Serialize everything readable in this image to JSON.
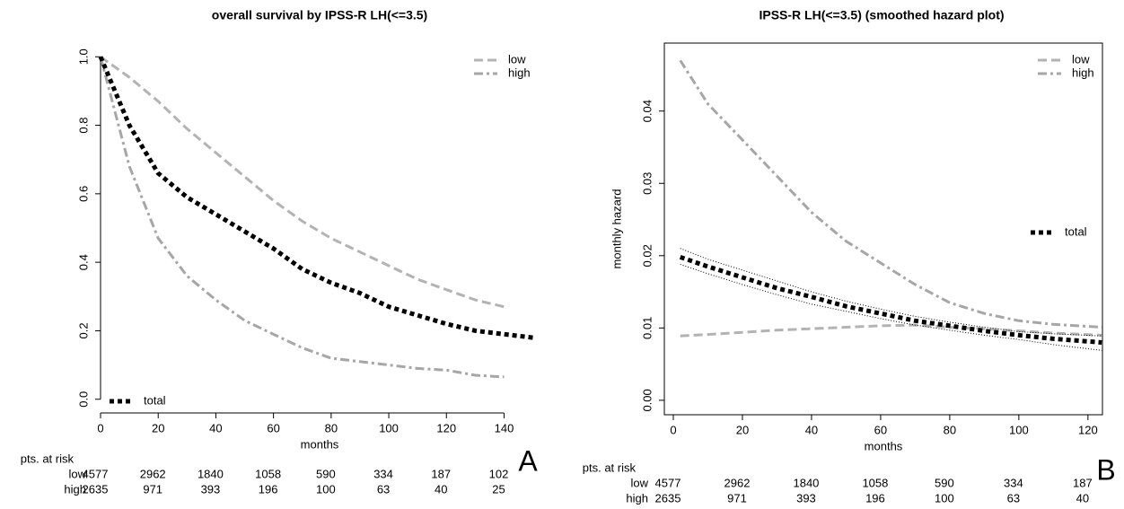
{
  "chart_data": [
    {
      "type": "line",
      "title": "overall survival by IPSS-R LH(<=3.5)",
      "xlabel": "months",
      "frame": "axes",
      "x": [
        0,
        10,
        20,
        30,
        40,
        50,
        60,
        70,
        80,
        90,
        100,
        110,
        120,
        130,
        140,
        150
      ],
      "series": [
        {
          "name": "low",
          "color": "#b3b3b3",
          "dash": "dashed",
          "line_width": 3,
          "legend_corner": "top-right",
          "values": [
            1.0,
            0.94,
            0.87,
            0.79,
            0.72,
            0.65,
            0.58,
            0.52,
            0.47,
            0.43,
            0.39,
            0.35,
            0.32,
            0.29,
            0.27,
            null
          ]
        },
        {
          "name": "high",
          "color": "#a6a6a6",
          "dash": "dotdash",
          "line_width": 3,
          "legend_corner": "top-right",
          "values": [
            1.0,
            0.68,
            0.47,
            0.36,
            0.29,
            0.23,
            0.19,
            0.15,
            0.12,
            0.11,
            0.1,
            0.09,
            0.085,
            0.07,
            0.065,
            null
          ]
        },
        {
          "name": "total",
          "color": "#000000",
          "dash": "dotted",
          "line_width": 5,
          "legend_corner": "bottom-left",
          "values": [
            1.0,
            0.8,
            0.66,
            0.59,
            0.54,
            0.49,
            0.44,
            0.38,
            0.34,
            0.31,
            0.27,
            0.245,
            0.22,
            0.2,
            0.19,
            0.18
          ]
        }
      ],
      "xlim": [
        0,
        152
      ],
      "ylim": [
        -0.04,
        1.04
      ],
      "xticks": [
        0,
        20,
        40,
        60,
        80,
        100,
        120,
        140
      ],
      "yticks": [
        {
          "value": 0,
          "label": "0.0"
        },
        {
          "value": 0.2,
          "label": "0.2"
        },
        {
          "value": 0.4,
          "label": "0.4"
        },
        {
          "value": 0.6,
          "label": "0.6"
        },
        {
          "value": 0.8,
          "label": "0.8"
        },
        {
          "value": 1,
          "label": "1.0"
        }
      ],
      "annotation": "A",
      "risk_table": {
        "title": "pts. at risk",
        "rows": [
          {
            "name": "low",
            "values": [
              4577,
              2962,
              1840,
              1058,
              590,
              334,
              187,
              102
            ]
          },
          {
            "name": "high",
            "values": [
              2635,
              971,
              393,
              196,
              100,
              63,
              40,
              25
            ]
          }
        ]
      }
    },
    {
      "type": "line",
      "title": "IPSS-R LH(<=3.5) (smoothed hazard plot)",
      "xlabel": "months",
      "ylabel": "monthly hazard",
      "frame": "box",
      "x": [
        2,
        10,
        20,
        30,
        40,
        50,
        60,
        70,
        80,
        90,
        100,
        110,
        124
      ],
      "series": [
        {
          "name": "low",
          "color": "#b3b3b3",
          "dash": "dashed",
          "line_width": 3,
          "legend_corner": "top-right",
          "values": [
            0.0089,
            0.0091,
            0.0094,
            0.0097,
            0.0099,
            0.0101,
            0.0103,
            0.0104,
            0.0101,
            0.0099,
            0.0096,
            0.0093,
            0.009
          ]
        },
        {
          "name": "high",
          "color": "#a6a6a6",
          "dash": "dotdash",
          "line_width": 3,
          "legend_corner": "top-right",
          "values": [
            0.047,
            0.041,
            0.036,
            0.031,
            0.026,
            0.022,
            0.019,
            0.016,
            0.0135,
            0.012,
            0.011,
            0.0105,
            0.0101
          ]
        },
        {
          "name": "total",
          "color": "#000000",
          "dash": "dotted",
          "line_width": 5,
          "legend_corner": "right",
          "values": [
            0.0198,
            0.0185,
            0.017,
            0.0155,
            0.0143,
            0.013,
            0.012,
            0.011,
            0.0103,
            0.0096,
            0.009,
            0.0085,
            0.008
          ]
        },
        {
          "color": "#000000",
          "dash": "fine",
          "line_width": 1,
          "values": [
            0.021,
            0.0195,
            0.018,
            0.0165,
            0.015,
            0.0137,
            0.0126,
            0.0116,
            0.0108,
            0.0101,
            0.0095,
            0.0092,
            0.0089
          ]
        },
        {
          "color": "#000000",
          "dash": "fine",
          "line_width": 1,
          "values": [
            0.0188,
            0.0175,
            0.016,
            0.0146,
            0.0133,
            0.0123,
            0.0113,
            0.0104,
            0.0097,
            0.009,
            0.0084,
            0.0077,
            0.0069
          ]
        }
      ],
      "xlim": [
        -2.6,
        124.2
      ],
      "ylim": [
        -0.002,
        0.0494
      ],
      "xticks": [
        0,
        20,
        40,
        60,
        80,
        100,
        120
      ],
      "yticks": [
        {
          "value": 0,
          "label": "0.00"
        },
        {
          "value": 0.01,
          "label": "0.01"
        },
        {
          "value": 0.02,
          "label": "0.02"
        },
        {
          "value": 0.03,
          "label": "0.03"
        },
        {
          "value": 0.04,
          "label": "0.04"
        }
      ],
      "annotation": "B",
      "risk_table": {
        "title": "pts. at risk",
        "rows": [
          {
            "name": "low",
            "values": [
              4577,
              2962,
              1840,
              1058,
              590,
              334,
              187
            ]
          },
          {
            "name": "high",
            "values": [
              2635,
              971,
              393,
              196,
              100,
              63,
              40
            ]
          }
        ]
      }
    }
  ]
}
